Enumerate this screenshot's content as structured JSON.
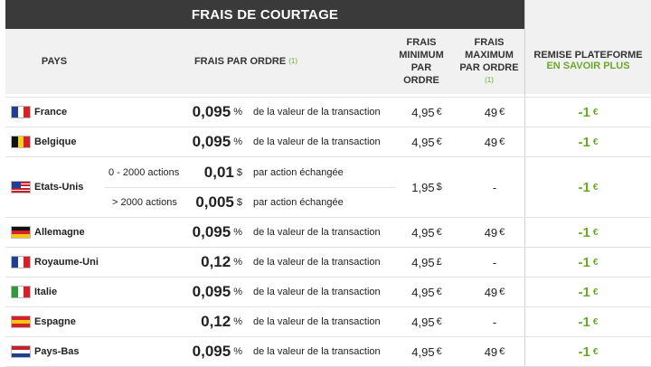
{
  "title": "FRAIS DE COURTAGE",
  "headers": {
    "pays": "PAYS",
    "frais_par_ordre": "FRAIS PAR ORDRE",
    "note_ref": "(1)",
    "min_line1": "FRAIS",
    "min_line2": "MINIMUM",
    "min_line3": "PAR",
    "min_line4": "ORDRE",
    "max_line1": "FRAIS",
    "max_line2": "MAXIMUM",
    "max_line3": "PAR ORDRE",
    "max_note": "(1)",
    "remise": "REMISE PLATEFORME",
    "remise_link": "EN SAVOIR PLUS"
  },
  "rows": [
    {
      "country": "France",
      "flag": [
        "#1f3f96",
        "#ffffff",
        "#d8202a"
      ],
      "value": "0,095",
      "unit": "%",
      "desc": "de la valeur de la transaction",
      "min": "4,95",
      "min_cur": "€",
      "max": "49",
      "max_cur": "€",
      "remise": "-1",
      "remise_cur": "€"
    },
    {
      "country": "Belgique",
      "flag": [
        "#111111",
        "#f5d11c",
        "#d8202a"
      ],
      "value": "0,095",
      "unit": "%",
      "desc": "de la valeur de la transaction",
      "min": "4,95",
      "min_cur": "€",
      "max": "49",
      "max_cur": "€",
      "remise": "-1",
      "remise_cur": "€"
    },
    {
      "country": "Allemagne",
      "flag": [
        "#111111",
        "#d8202a",
        "#f5c518"
      ],
      "value": "0,095",
      "unit": "%",
      "desc": "de la valeur de la transaction",
      "min": "4,95",
      "min_cur": "€",
      "max": "49",
      "max_cur": "€",
      "remise": "-1",
      "remise_cur": "€"
    },
    {
      "country": "Royaume-Uni",
      "flag": [
        "#1f3f96",
        "#ffffff",
        "#d8202a"
      ],
      "value": "0,12",
      "unit": "%",
      "desc": "de la valeur de la transaction",
      "min": "4,95",
      "min_cur": "£",
      "max": "-",
      "max_cur": "",
      "remise": "-1",
      "remise_cur": "€"
    },
    {
      "country": "Italie",
      "flag": [
        "#2f9a3a",
        "#ffffff",
        "#d8202a"
      ],
      "value": "0,095",
      "unit": "%",
      "desc": "de la valeur de la transaction",
      "min": "4,95",
      "min_cur": "€",
      "max": "49",
      "max_cur": "€",
      "remise": "-1",
      "remise_cur": "€"
    },
    {
      "country": "Espagne",
      "flag": [
        "#d8202a",
        "#f5c518",
        "#d8202a"
      ],
      "value": "0,12",
      "unit": "%",
      "desc": "de la valeur de la transaction",
      "min": "4,95",
      "min_cur": "€",
      "max": "-",
      "max_cur": "",
      "remise": "-1",
      "remise_cur": "€"
    },
    {
      "country": "Pays-Bas",
      "flag": [
        "#c8202a",
        "#ffffff",
        "#1f3f96"
      ],
      "value": "0,095",
      "unit": "%",
      "desc": "de la valeur de la transaction",
      "min": "4,95",
      "min_cur": "€",
      "max": "49",
      "max_cur": "€",
      "remise": "-1",
      "remise_cur": "€"
    }
  ],
  "usa": {
    "country": "Etats-Unis",
    "r1_range": "0 - 2000 actions",
    "r1_value": "0,01",
    "r1_unit": "$",
    "r1_desc": "par action échangée",
    "r2_range": "> 2000 actions",
    "r2_value": "0,005",
    "r2_unit": "$",
    "r2_desc": "par action échangée",
    "min": "1,95",
    "min_cur": "$",
    "max": "-",
    "remise": "-1",
    "remise_cur": "€"
  }
}
